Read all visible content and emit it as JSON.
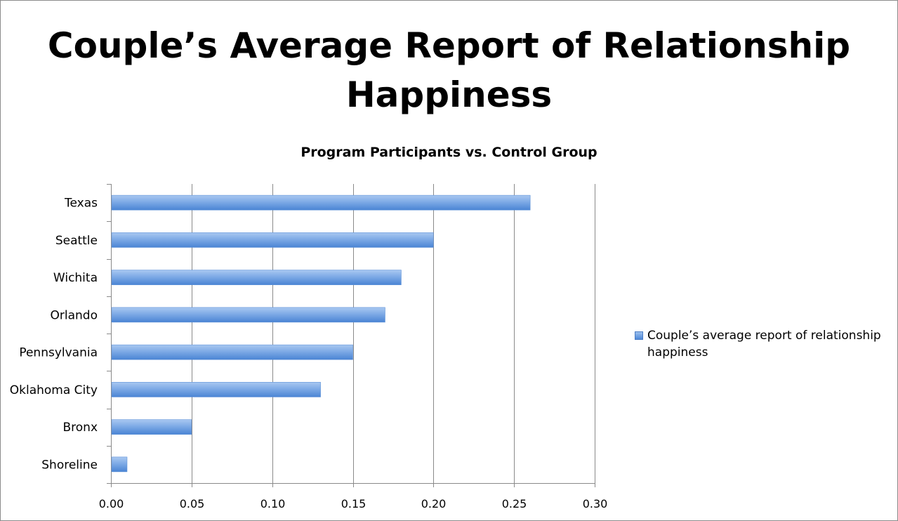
{
  "chart_data": {
    "type": "bar",
    "orientation": "horizontal",
    "title": "Couple’s Average Report of Relationship Happiness",
    "subtitle": "Program Participants vs. Control Group",
    "categories": [
      "Texas",
      "Seattle",
      "Wichita",
      "Orlando",
      "Pennsylvania",
      "Oklahoma City",
      "Bronx",
      "Shoreline"
    ],
    "series": [
      {
        "name": "Couple’s average report of relationship happiness",
        "values": [
          0.26,
          0.2,
          0.18,
          0.17,
          0.15,
          0.13,
          0.05,
          0.01
        ],
        "color": "#6a9be0"
      }
    ],
    "xlim": [
      0,
      0.3
    ],
    "x_ticks": [
      "0.00",
      "0.05",
      "0.10",
      "0.15",
      "0.20",
      "0.25",
      "0.30"
    ],
    "x_tick_values": [
      0,
      0.05,
      0.1,
      0.15,
      0.2,
      0.25,
      0.3
    ],
    "grid": "vertical",
    "legend_position": "right"
  }
}
